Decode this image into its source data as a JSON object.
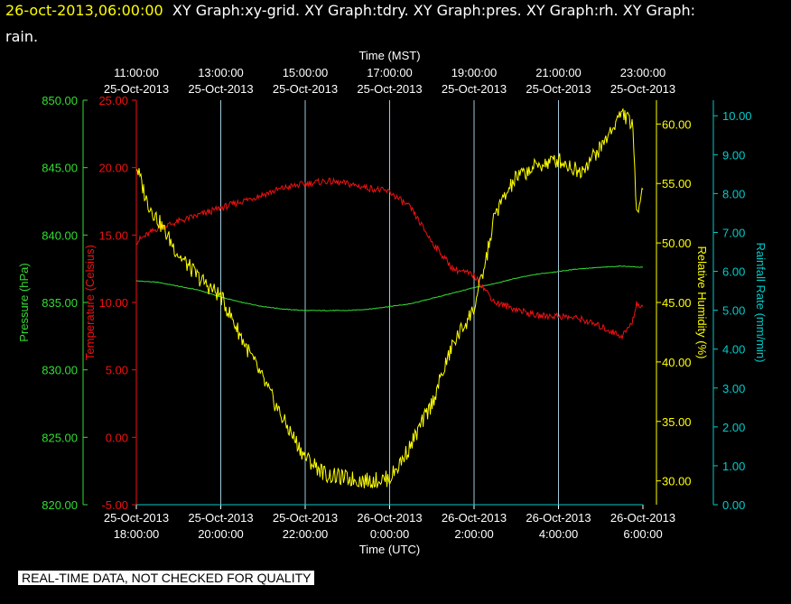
{
  "header": {
    "timestamp": "26-oct-2013,06:00:00",
    "line1_rest": "XY Graph:xy-grid.  XY Graph:tdry.  XY Graph:pres.  XY Graph:rh.  XY Graph:",
    "line2": "rain."
  },
  "disclaimer": "REAL-TIME DATA, NOT CHECKED FOR QUALITY",
  "colors": {
    "background": "#000000",
    "grid": "#a0c8d8",
    "pressure": "#33dd33",
    "temperature": "#ee1111",
    "humidity": "#ffff00",
    "rainfall": "#00cccc",
    "white": "#ffffff"
  },
  "chart_data": {
    "type": "line",
    "top_axis": {
      "label": "Time (MST)",
      "ticks": [
        {
          "time": "11:00:00",
          "date": "25-Oct-2013"
        },
        {
          "time": "13:00:00",
          "date": "25-Oct-2013"
        },
        {
          "time": "15:00:00",
          "date": "25-Oct-2013"
        },
        {
          "time": "17:00:00",
          "date": "25-Oct-2013"
        },
        {
          "time": "19:00:00",
          "date": "25-Oct-2013"
        },
        {
          "time": "21:00:00",
          "date": "25-Oct-2013"
        },
        {
          "time": "23:00:00",
          "date": "25-Oct-2013"
        }
      ]
    },
    "bottom_axis": {
      "label": "Time (UTC)",
      "ticks": [
        {
          "date": "25-Oct-2013",
          "time": "18:00:00"
        },
        {
          "date": "25-Oct-2013",
          "time": "20:00:00"
        },
        {
          "date": "25-Oct-2013",
          "time": "22:00:00"
        },
        {
          "date": "26-Oct-2013",
          "time": "0:00:00"
        },
        {
          "date": "26-Oct-2013",
          "time": "2:00:00"
        },
        {
          "date": "26-Oct-2013",
          "time": "4:00:00"
        },
        {
          "date": "26-Oct-2013",
          "time": "6:00:00"
        }
      ]
    },
    "x_range_utc_hours": [
      18,
      30
    ],
    "axes": {
      "pressure": {
        "label": "Pressure (hPa)",
        "ylim": [
          820,
          850
        ],
        "ticks": [
          "820.00",
          "825.00",
          "830.00",
          "835.00",
          "840.00",
          "845.00",
          "850.00"
        ]
      },
      "temperature": {
        "label": "Temperature (Celsius)",
        "ylim": [
          -5,
          25
        ],
        "ticks": [
          "-5.00",
          "0.00",
          "5.00",
          "10.00",
          "15.00",
          "20.00",
          "25.00"
        ]
      },
      "humidity": {
        "label": "Relative Humidity (%)",
        "ylim": [
          28,
          62
        ],
        "ticks": [
          "30.00",
          "35.00",
          "40.00",
          "45.00",
          "50.00",
          "55.00",
          "60.00"
        ]
      },
      "rainfall": {
        "label": "Rainfall Rate (mm/min)",
        "ylim": [
          0,
          10.4
        ],
        "ticks": [
          "0.00",
          "1.00",
          "2.00",
          "3.00",
          "4.00",
          "5.00",
          "6.00",
          "7.00",
          "8.00",
          "9.00",
          "10.00"
        ]
      }
    },
    "series": [
      {
        "name": "pressure",
        "x": [
          18,
          18.5,
          19,
          19.5,
          20,
          20.5,
          21,
          21.5,
          22,
          22.5,
          23,
          23.5,
          24,
          24.5,
          25,
          25.5,
          26,
          26.5,
          27,
          27.5,
          28,
          28.5,
          29,
          29.5,
          30
        ],
        "values": [
          836.6,
          836.5,
          836.2,
          835.9,
          835.4,
          835.0,
          834.7,
          834.5,
          834.4,
          834.4,
          834.4,
          834.5,
          834.7,
          834.9,
          835.3,
          835.7,
          836.1,
          836.4,
          836.8,
          837.1,
          837.3,
          837.5,
          837.6,
          837.7,
          837.6
        ]
      },
      {
        "name": "temperature",
        "x": [
          18,
          18.5,
          19,
          19.5,
          20,
          20.5,
          21,
          21.5,
          22,
          22.5,
          23,
          23.5,
          24,
          24.5,
          25,
          25.5,
          26,
          26.5,
          27,
          27.5,
          28,
          28.5,
          29,
          29.5,
          29.75,
          29.85,
          30
        ],
        "values": [
          14.5,
          15.5,
          16.0,
          16.5,
          17.0,
          17.5,
          18.0,
          18.5,
          18.8,
          19.0,
          18.8,
          18.5,
          18.2,
          17.0,
          14.5,
          12.5,
          12.0,
          10.0,
          9.5,
          9.0,
          9.0,
          8.8,
          8.2,
          7.5,
          8.5,
          10.0,
          9.5
        ]
      },
      {
        "name": "humidity",
        "x": [
          18,
          18.25,
          18.5,
          19,
          19.5,
          20,
          20.5,
          21,
          21.5,
          22,
          22.5,
          23,
          23.5,
          24,
          24.25,
          24.5,
          25,
          25.5,
          26,
          26.25,
          26.5,
          27,
          27.5,
          28,
          28.5,
          29,
          29.5,
          29.75,
          29.85,
          30
        ],
        "values": [
          56.5,
          53.5,
          52.0,
          49.0,
          47.0,
          45.5,
          42.0,
          38.5,
          35.0,
          32.0,
          30.5,
          30.2,
          30.0,
          30.2,
          31.5,
          33.0,
          36.5,
          41.5,
          44.5,
          48.0,
          52.5,
          55.5,
          56.5,
          57.0,
          56.0,
          58.0,
          61.0,
          60.0,
          52.5,
          55.0
        ]
      },
      {
        "name": "rainfall",
        "x": [
          18,
          30
        ],
        "values": [
          0,
          0
        ]
      }
    ]
  }
}
